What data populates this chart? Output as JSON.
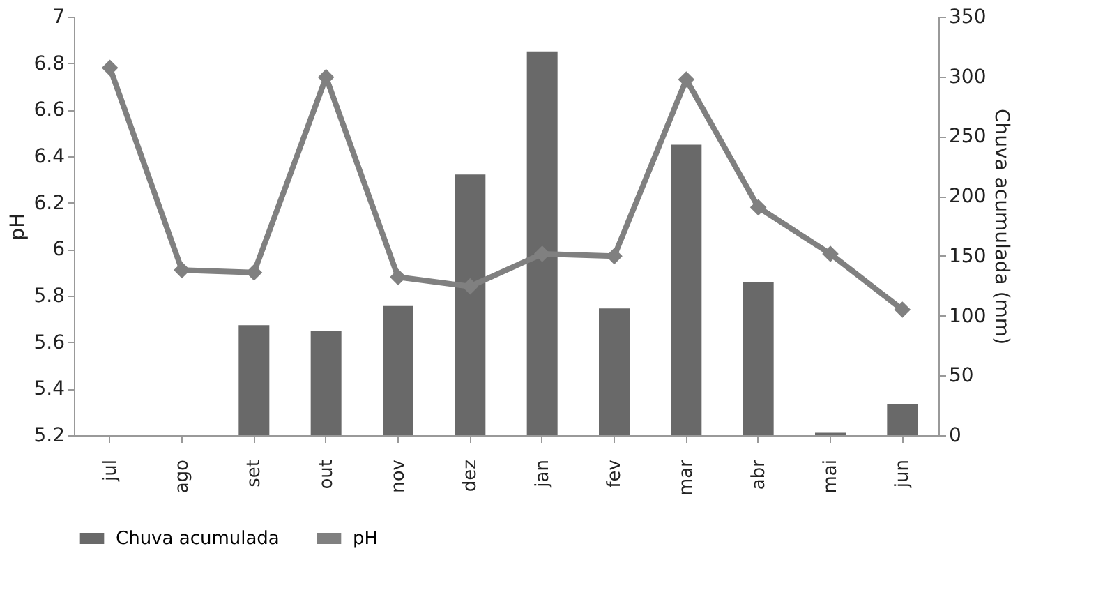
{
  "chart_data": {
    "type": "bar",
    "categories": [
      "jul",
      "ago",
      "set",
      "out",
      "nov",
      "dez",
      "jan",
      "fev",
      "mar",
      "abr",
      "mai",
      "jun"
    ],
    "ylabel": "pH",
    "y2label": "Chuva acumulada (mm)",
    "series": [
      {
        "name": "Chuva acumulada",
        "axis": "y2",
        "color": "#696969",
        "values": [
          0,
          0,
          92,
          87,
          108,
          218,
          321,
          106,
          243,
          128,
          2,
          26
        ]
      },
      {
        "name": "pH",
        "type": "line",
        "color": "#808080",
        "marker": "diamond",
        "values": [
          6.78,
          5.91,
          5.9,
          6.74,
          5.88,
          5.84,
          5.98,
          5.97,
          6.73,
          6.18,
          5.98,
          5.74
        ]
      }
    ],
    "ylim": [
      5.2,
      7
    ],
    "yticks": [
      5.2,
      5.4,
      5.6,
      5.8,
      6,
      6.2,
      6.4,
      6.6,
      6.8,
      7
    ],
    "y2lim": [
      0,
      350
    ],
    "y2ticks": [
      0,
      50,
      100,
      150,
      200,
      250,
      300,
      350
    ],
    "grid": false,
    "legend": "bottom"
  }
}
